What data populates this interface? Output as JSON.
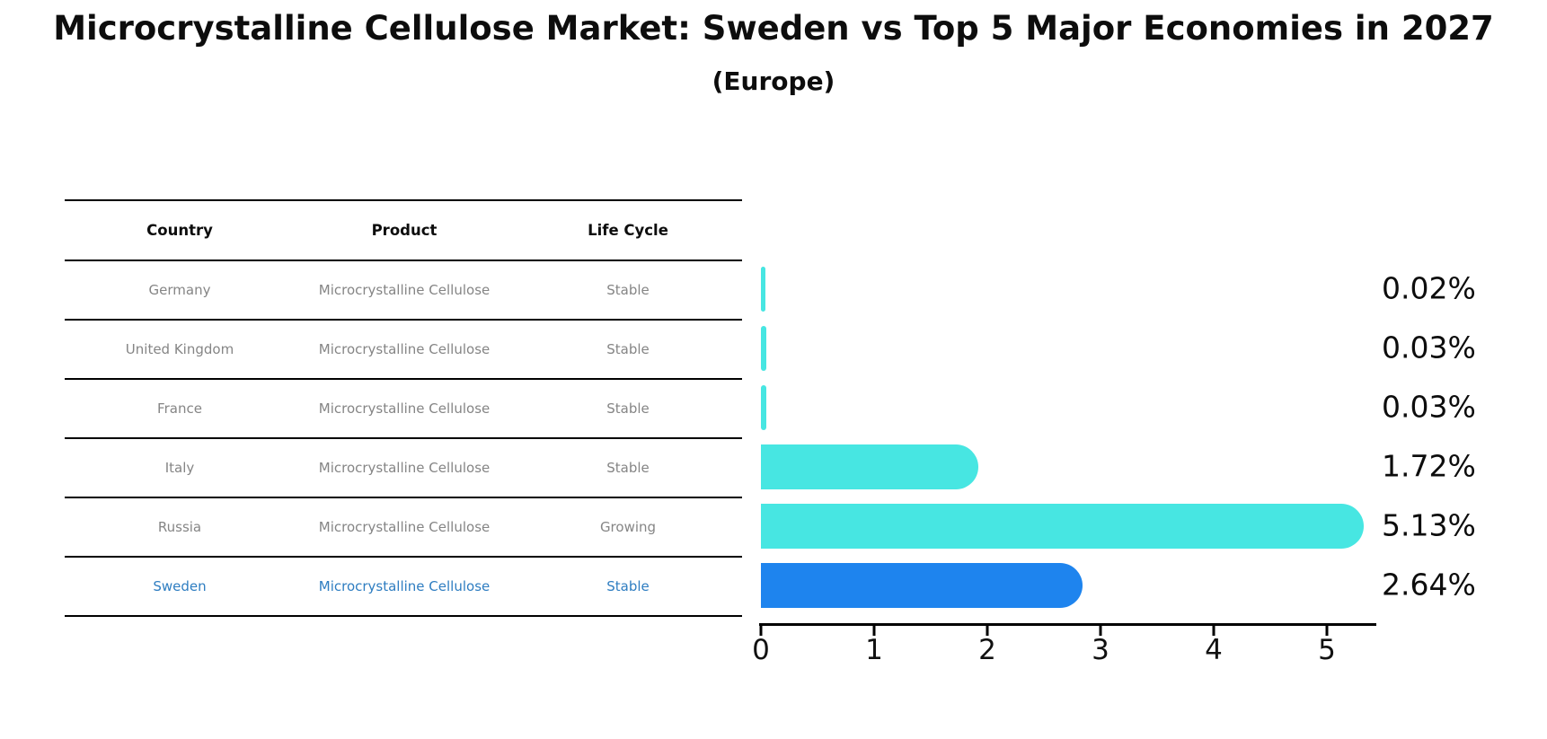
{
  "title": "Microcrystalline Cellulose Market: Sweden vs Top 5 Major Economies in 2027",
  "subtitle": "(Europe)",
  "table": {
    "headers": [
      "Country",
      "Product",
      "Life Cycle"
    ],
    "rows": [
      {
        "country": "Germany",
        "product": "Microcrystalline Cellulose",
        "life_cycle": "Stable",
        "highlight": false
      },
      {
        "country": "United Kingdom",
        "product": "Microcrystalline Cellulose",
        "life_cycle": "Stable",
        "highlight": false
      },
      {
        "country": "France",
        "product": "Microcrystalline Cellulose",
        "life_cycle": "Stable",
        "highlight": false
      },
      {
        "country": "Italy",
        "product": "Microcrystalline Cellulose",
        "life_cycle": "Stable",
        "highlight": false
      },
      {
        "country": "Russia",
        "product": "Microcrystalline Cellulose",
        "life_cycle": "Growing",
        "highlight": false
      },
      {
        "country": "Sweden",
        "product": "Microcrystalline Cellulose",
        "life_cycle": "Stable",
        "highlight": true
      }
    ]
  },
  "chart_data": {
    "type": "bar",
    "orientation": "horizontal",
    "title": "Microcrystalline Cellulose Market: Sweden vs Top 5 Major Economies in 2027 (Europe)",
    "categories": [
      "Germany",
      "United Kingdom",
      "France",
      "Italy",
      "Russia",
      "Sweden"
    ],
    "values": [
      0.02,
      0.03,
      0.03,
      1.72,
      5.13,
      2.64
    ],
    "value_labels": [
      "0.02%",
      "0.03%",
      "0.03%",
      "1.72%",
      "5.13%",
      "2.64%"
    ],
    "x_tick_labels": [
      "0",
      "1",
      "2",
      "3",
      "4",
      "5"
    ],
    "xlim": [
      0,
      5.45
    ],
    "grid": false,
    "legend": "none",
    "highlight_index": 5
  },
  "colors": {
    "bar": "#47E6E2",
    "highlight_bar": "#1E84EE",
    "highlight_text": "#2E7DC1",
    "table_text": "#858585",
    "header_text": "#0d0d0d",
    "axis": "#000000"
  }
}
